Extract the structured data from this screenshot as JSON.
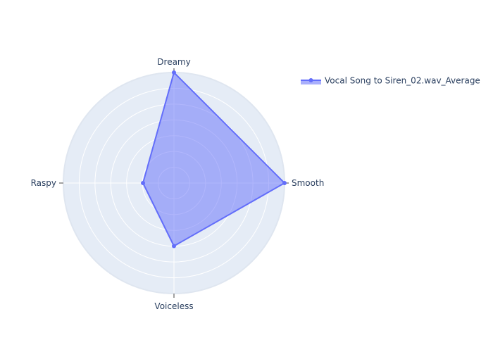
{
  "chart_data": {
    "type": "radar",
    "axes": [
      "Dreamy",
      "Smooth",
      "Voiceless",
      "Raspy"
    ],
    "series": [
      {
        "name": "Vocal Song to Siren_02.wav_Average",
        "values": [
          1.0,
          1.0,
          0.57,
          0.28
        ],
        "color": "#636efa"
      }
    ],
    "rlim": [
      0,
      1
    ],
    "grid": true,
    "legend": "top-right"
  }
}
